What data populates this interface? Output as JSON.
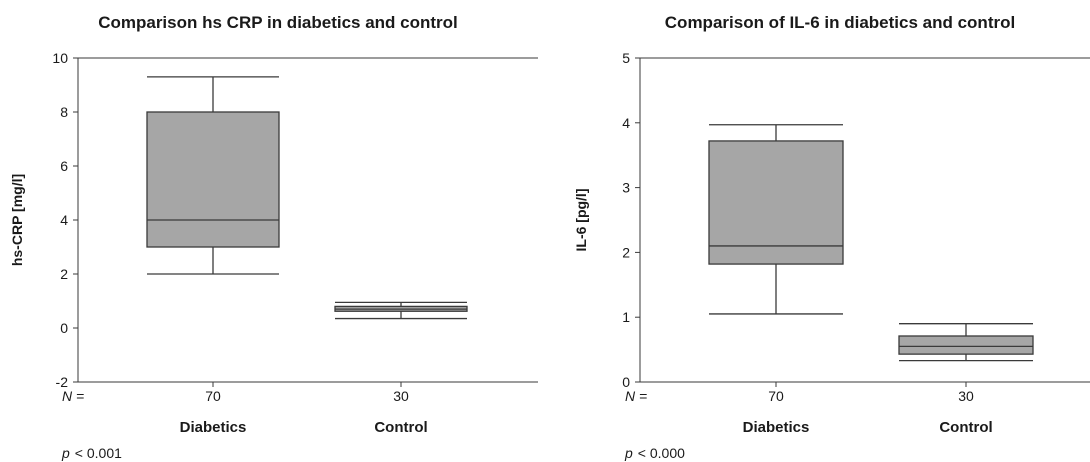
{
  "chart_data": [
    {
      "type": "box",
      "title": "Comparison hs CRP in diabetics and control",
      "ylabel": "hs-CRP [mg/l]",
      "ylim": [
        -2,
        10
      ],
      "yticks": [
        "-2",
        "0",
        "2",
        "4",
        "6",
        "8",
        "10"
      ],
      "n_label": "N =",
      "categories": [
        {
          "name": "Diabetics",
          "n": "70",
          "min": 2.0,
          "q1": 3.0,
          "median": 4.0,
          "q3": 8.0,
          "max": 9.3
        },
        {
          "name": "Control",
          "n": "30",
          "min": 0.35,
          "q1": 0.62,
          "median": 0.7,
          "q3": 0.8,
          "max": 0.95
        }
      ],
      "p_label": "p",
      "p_value": "< 0.001"
    },
    {
      "type": "box",
      "title": "Comparison of IL-6 in diabetics and control",
      "ylabel": "IL-6 [pg/l]",
      "ylim": [
        0,
        5
      ],
      "yticks": [
        "0",
        "1",
        "2",
        "3",
        "4",
        "5"
      ],
      "n_label": "N =",
      "categories": [
        {
          "name": "Diabetics",
          "n": "70",
          "min": 1.05,
          "q1": 1.82,
          "median": 2.1,
          "q3": 3.72,
          "max": 3.97
        },
        {
          "name": "Control",
          "n": "30",
          "min": 0.33,
          "q1": 0.43,
          "median": 0.55,
          "q3": 0.71,
          "max": 0.9
        }
      ],
      "p_label": "p",
      "p_value": "< 0.000"
    }
  ],
  "colors": {
    "box_fill": "#a6a6a6",
    "line": "#3a3a3a"
  }
}
